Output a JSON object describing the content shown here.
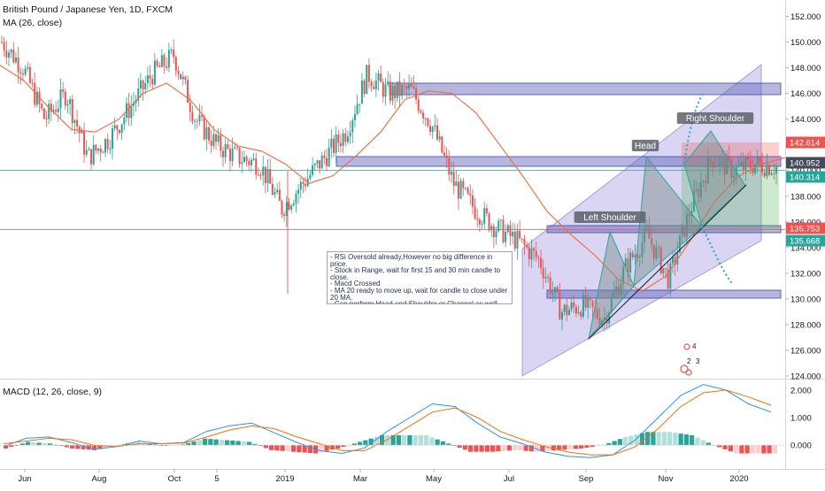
{
  "header": {
    "symbol_title": "British Pound / Japanese Yen, 1D, FXCM",
    "ma_label": "MA (26, close)",
    "macd_label": "MACD (12, 26, close, 9)"
  },
  "colors": {
    "up": "#26a69a",
    "down": "#ef5350",
    "ma": "#f4683c",
    "macd_line": "#2196f3",
    "signal_line": "#ff6d00",
    "zone": "#5a5fb8",
    "channel": "#8a7cd6",
    "target": "#26a7c8"
  },
  "annotations": {
    "note_text": "- RSi Oversold already,However no big difference in price.\n- Stock in Range, wait for first 15 and 30 min candle to close.\n- Macd Crossed\n- MA 20 ready to move up, wait for candle to close under 20 MA.\n- Can perform Head and Shoulder or Channel as well.\n- Targets on Chart.\n- Support Resistance on Chart",
    "left_shoulder": "Left Shoulder",
    "head": "Head",
    "right_shoulder": "Right Shoulder",
    "pivot_labels": [
      "4",
      "2",
      "3"
    ]
  },
  "chart_data": [
    {
      "type": "candlestick",
      "title": "British Pound / Japanese Yen, 1D, FXCM",
      "x_tick_labels": [
        "Jun",
        "Aug",
        "Oct",
        "5",
        "2019",
        "Mar",
        "May",
        "Jul",
        "Sep",
        "Nov",
        "2020"
      ],
      "y_tick_labels": [
        "124.000",
        "126.000",
        "128.000",
        "130.000",
        "132.000",
        "134.000",
        "136.000",
        "138.000",
        "140.000",
        "142.000",
        "144.000",
        "146.000",
        "148.000",
        "150.000",
        "152.000"
      ],
      "ylim": [
        124,
        153
      ],
      "price_tags": [
        {
          "value": "142.614",
          "color": "#ef5350"
        },
        {
          "value": "140.952",
          "color": "#444a5a"
        },
        {
          "value": "140.314",
          "color": "#26a69a"
        },
        {
          "value": "135.753",
          "color": "#ef5350"
        },
        {
          "value": "135.668",
          "color": "#26a69a"
        }
      ],
      "series": [
        {
          "name": "MA (26, close)",
          "values": [
            148.2,
            147.0,
            145.0,
            143.2,
            143.0,
            144.0,
            146.0,
            146.8,
            145.5,
            143.2,
            141.9,
            141.5,
            140.5,
            139.0,
            139.6,
            141.2,
            143.0,
            145.5,
            146.2,
            146.0,
            144.5,
            142.0,
            139.5,
            136.8,
            135.0,
            133.4,
            131.5,
            130.6,
            131.8,
            134.5,
            137.5,
            139.5,
            140.5,
            141.0
          ]
        }
      ],
      "close_path": [
        150.0,
        148.0,
        144.0,
        146.0,
        141.0,
        142.5,
        145.0,
        147.5,
        149.0,
        144.0,
        142.0,
        141.0,
        140.5,
        137.0,
        139.0,
        141.0,
        143.0,
        147.5,
        146.0,
        146.3,
        143.5,
        139.0,
        137.0,
        135.5,
        134.5,
        133.0,
        129.0,
        129.5,
        128.5,
        132.5,
        135.0,
        131.5,
        137.0,
        141.0,
        140.0,
        140.5,
        140.3
      ]
    },
    {
      "type": "bar",
      "title": "MACD (12, 26, close, 9)",
      "y_tick_labels": [
        "2.000",
        "1.000",
        "0.000"
      ],
      "ylim": [
        -0.7,
        2.35
      ],
      "series": [
        {
          "name": "MACD",
          "values": [
            -0.05,
            0.25,
            0.3,
            0.1,
            -0.15,
            -0.05,
            0.15,
            0.05,
            0.1,
            0.5,
            0.7,
            0.8,
            0.45,
            0.1,
            -0.2,
            -0.3,
            -0.1,
            0.5,
            1.0,
            1.5,
            1.4,
            0.8,
            0.3,
            0.05,
            -0.25,
            -0.4,
            -0.45,
            -0.35,
            0.2,
            1.0,
            1.8,
            2.2,
            2.0,
            1.5,
            1.2
          ]
        },
        {
          "name": "Signal",
          "values": [
            0.05,
            0.15,
            0.25,
            0.2,
            0.0,
            -0.05,
            0.05,
            0.05,
            0.08,
            0.3,
            0.55,
            0.7,
            0.6,
            0.3,
            0.05,
            -0.2,
            -0.2,
            0.2,
            0.7,
            1.2,
            1.35,
            1.0,
            0.5,
            0.2,
            -0.05,
            -0.25,
            -0.35,
            -0.35,
            -0.05,
            0.6,
            1.4,
            1.9,
            2.0,
            1.75,
            1.45
          ]
        }
      ]
    }
  ]
}
